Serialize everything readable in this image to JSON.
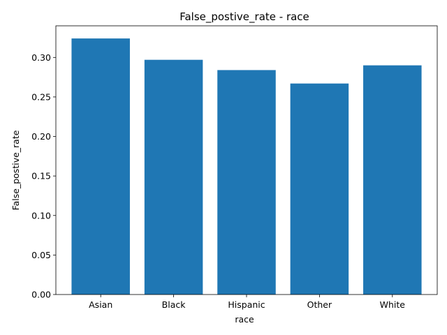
{
  "chart_data": {
    "type": "bar",
    "title": "False_postive_rate - race",
    "xlabel": "race",
    "ylabel": "False_postive_rate",
    "categories": [
      "Asian",
      "Black",
      "Hispanic",
      "Other",
      "White"
    ],
    "values": [
      0.324,
      0.297,
      0.284,
      0.267,
      0.29
    ],
    "ylim": [
      0,
      0.34
    ],
    "yticks": [
      0.0,
      0.05,
      0.1,
      0.15,
      0.2,
      0.25,
      0.3
    ],
    "ytick_labels": [
      "0.00",
      "0.05",
      "0.10",
      "0.15",
      "0.20",
      "0.25",
      "0.30"
    ],
    "bar_color": "#1f77b4",
    "grid": false
  }
}
